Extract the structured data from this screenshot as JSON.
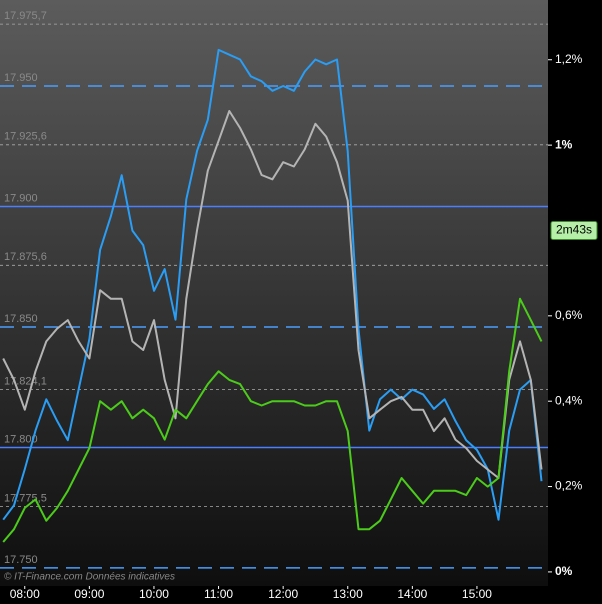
{
  "chart_data": {
    "type": "line",
    "x": [
      "07:40",
      "07:50",
      "08:00",
      "08:10",
      "08:20",
      "08:30",
      "08:40",
      "08:50",
      "09:00",
      "09:10",
      "09:20",
      "09:30",
      "09:40",
      "09:50",
      "10:00",
      "10:10",
      "10:20",
      "10:30",
      "10:40",
      "10:50",
      "11:00",
      "11:10",
      "11:20",
      "11:30",
      "11:40",
      "11:50",
      "12:00",
      "12:10",
      "12:20",
      "12:30",
      "12:40",
      "12:50",
      "13:00",
      "13:10",
      "13:20",
      "13:30",
      "13:40",
      "13:50",
      "14:00",
      "14:10",
      "14:20",
      "14:30",
      "14:40",
      "14:50",
      "15:00",
      "15:10",
      "15:20",
      "15:30",
      "15:40",
      "15:50",
      "16:00"
    ],
    "series": [
      {
        "color": "#2a9df4",
        "axis": "y",
        "values": [
          17770,
          17776,
          17791,
          17807,
          17820,
          17811,
          17803,
          17824,
          17845,
          17882,
          17896,
          17913,
          17890,
          17884,
          17865,
          17874,
          17853,
          17903,
          17923,
          17936,
          17965,
          17963,
          17961,
          17954,
          17952,
          17948,
          17950,
          17948,
          17956,
          17961,
          17959,
          17961,
          17923,
          17849,
          17807,
          17820,
          17824,
          17820,
          17824,
          17822,
          17816,
          17820,
          17811,
          17803,
          17799,
          17791,
          17770,
          17807,
          17824,
          17828,
          17786
        ]
      },
      {
        "color": "#b4b4b4",
        "axis": "y2",
        "values": [
          0.5,
          0.45,
          0.38,
          0.47,
          0.54,
          0.57,
          0.59,
          0.54,
          0.5,
          0.66,
          0.64,
          0.64,
          0.54,
          0.52,
          0.59,
          0.45,
          0.36,
          0.64,
          0.8,
          0.94,
          1.01,
          1.08,
          1.04,
          0.99,
          0.93,
          0.92,
          0.96,
          0.95,
          0.99,
          1.05,
          1.02,
          0.96,
          0.87,
          0.52,
          0.36,
          0.38,
          0.4,
          0.41,
          0.38,
          0.38,
          0.33,
          0.36,
          0.31,
          0.29,
          0.26,
          0.24,
          0.22,
          0.45,
          0.54,
          0.45,
          0.24
        ]
      },
      {
        "color": "#4ccc1a",
        "axis": "y2",
        "values": [
          0.07,
          0.1,
          0.15,
          0.17,
          0.12,
          0.15,
          0.19,
          0.24,
          0.29,
          0.4,
          0.38,
          0.4,
          0.36,
          0.38,
          0.36,
          0.31,
          0.38,
          0.36,
          0.4,
          0.44,
          0.47,
          0.45,
          0.44,
          0.4,
          0.39,
          0.4,
          0.4,
          0.4,
          0.39,
          0.39,
          0.4,
          0.4,
          0.33,
          0.1,
          0.1,
          0.12,
          0.17,
          0.22,
          0.19,
          0.16,
          0.19,
          0.19,
          0.19,
          0.18,
          0.22,
          0.2,
          0.22,
          0.47,
          0.64,
          0.59,
          0.54
        ]
      }
    ],
    "xlim": [
      "07:37",
      "16:06"
    ],
    "xticks": [
      "08:00",
      "09:00",
      "10:00",
      "11:00",
      "12:00",
      "13:00",
      "14:00",
      "15:00"
    ],
    "ylim": [
      17742.5,
      17985.7
    ],
    "yticks": [
      {
        "value": 17975.7,
        "label": "17.975,7"
      },
      {
        "value": 17950,
        "label": "17.950"
      },
      {
        "value": 17925.6,
        "label": "17.925,6"
      },
      {
        "value": 17900,
        "label": "17.900"
      },
      {
        "value": 17875.6,
        "label": "17.875,6"
      },
      {
        "value": 17850,
        "label": "17.850"
      },
      {
        "value": 17824.1,
        "label": "17.824,1"
      },
      {
        "value": 17800,
        "label": "17.800"
      },
      {
        "value": 17775.5,
        "label": "17.775,5"
      },
      {
        "value": 17750,
        "label": "17.750"
      }
    ],
    "y2lim": [
      -0.033,
      1.34
    ],
    "y2ticks": [
      {
        "value": 1.2,
        "label": "1,2%"
      },
      {
        "value": 1,
        "label": "1%"
      },
      {
        "value": 0.6,
        "label": "0,6%"
      },
      {
        "value": 0.4,
        "label": "0,4%"
      },
      {
        "value": 0.2,
        "label": "0,2%"
      },
      {
        "value": 0,
        "label": "0%"
      }
    ],
    "countdown": "2m43s",
    "countdown_value": 0.8,
    "copyright": "© IT-Finance.com  Données indicatives"
  }
}
